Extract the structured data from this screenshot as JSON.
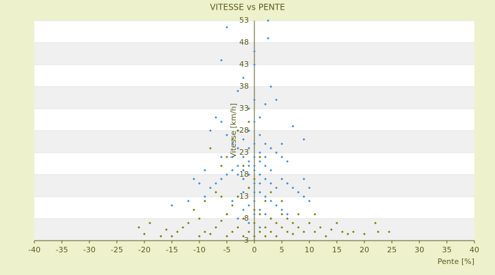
{
  "chart_data": {
    "type": "scatter",
    "title": "VITESSE vs PENTE",
    "x_label": "Pente [%]",
    "y_label": "Vitesse [km/h]",
    "xlim": [
      -40,
      40
    ],
    "xticks": [
      -40,
      -35,
      -30,
      -25,
      -20,
      -15,
      -10,
      -5,
      0,
      5,
      10,
      15,
      20,
      25,
      30,
      35,
      40
    ],
    "ylim": [
      3,
      53
    ],
    "yticks": [
      3,
      8,
      13,
      18,
      23,
      28,
      33,
      38,
      43,
      48,
      53
    ],
    "grid": true,
    "series": [
      {
        "color": "#3a8fd9",
        "x": [
          -5,
          2.5,
          2.5,
          -6,
          0,
          -2,
          3,
          -3,
          0,
          -1,
          2,
          -7,
          -6,
          7,
          9,
          -8,
          -5,
          -4,
          -3,
          -2,
          -1,
          0,
          1,
          2,
          3,
          4,
          5,
          6,
          -2,
          -1,
          0,
          1,
          2,
          -3,
          -4,
          -5,
          -6,
          -7,
          -8,
          -10,
          -11,
          -9,
          -15,
          -12,
          -3,
          -2,
          -1,
          0,
          1,
          2,
          3,
          4,
          5,
          6,
          7,
          8,
          9,
          10,
          -1,
          0,
          1,
          2,
          3,
          4,
          -2,
          -3,
          -4,
          0,
          1,
          -1,
          0,
          2,
          5,
          6,
          -2,
          -5,
          -1,
          0,
          1,
          -2,
          0,
          -1,
          1,
          0,
          3,
          -4,
          2,
          -3,
          1,
          4,
          0,
          -1,
          1,
          3,
          -3,
          9,
          10,
          -9,
          5,
          -6
        ],
        "values": [
          51.5,
          53,
          49,
          44,
          43,
          40,
          38,
          37,
          35,
          33,
          34,
          31,
          30,
          29,
          26,
          28,
          27,
          25,
          24,
          26,
          28,
          30,
          27,
          25,
          24,
          23,
          22,
          21,
          22,
          21,
          22,
          21,
          20,
          20,
          19,
          18,
          17,
          16,
          15,
          16,
          17,
          13,
          11,
          12,
          18,
          17,
          18,
          19,
          18,
          17,
          16,
          15,
          17,
          16,
          15,
          14,
          13,
          12,
          15,
          16,
          14,
          13,
          12,
          11,
          14,
          13,
          12,
          12,
          10,
          11,
          9,
          9,
          10,
          9,
          10,
          9,
          24,
          25,
          23,
          19,
          20,
          20,
          16,
          14,
          19,
          22,
          22,
          28,
          31,
          35,
          46,
          7,
          6,
          8,
          8,
          17,
          15,
          19,
          25,
          22
        ]
      },
      {
        "color": "#7f7f00",
        "x": [
          -21,
          -19,
          -16,
          -14,
          -13,
          -12,
          -10,
          -9,
          -8,
          -7,
          -6,
          -5,
          -5,
          -4,
          -4,
          -3,
          -3,
          -2,
          -2,
          -1,
          -1,
          0,
          0,
          0,
          1,
          1,
          2,
          2,
          2,
          3,
          3,
          4,
          4,
          5,
          5,
          6,
          6,
          7,
          7,
          8,
          9,
          10,
          11,
          12,
          13,
          14,
          15,
          16,
          17,
          18,
          20,
          22,
          22.5,
          24.5,
          -20,
          -17,
          -11,
          -7,
          -6,
          -4,
          -3,
          -8,
          -5,
          -9,
          3,
          5,
          8,
          -2,
          1,
          -1,
          0,
          -6,
          -10,
          -15,
          11
        ],
        "values": [
          6,
          7,
          5.5,
          5,
          6,
          7,
          8,
          5,
          4.5,
          6,
          7.5,
          9,
          4,
          5,
          11,
          6,
          13,
          4,
          8,
          5,
          15,
          4,
          7,
          10,
          5,
          9,
          4,
          6,
          12,
          5,
          8,
          4,
          7,
          6,
          9,
          5,
          8,
          4.5,
          7,
          6,
          5,
          7,
          5,
          6,
          4,
          5.5,
          7,
          5,
          4.5,
          5,
          4.5,
          7,
          5,
          5,
          4.5,
          4,
          10,
          14,
          20,
          26,
          28,
          24,
          22,
          12,
          14,
          12,
          9,
          20,
          22,
          30,
          17,
          13,
          4,
          4,
          9
        ]
      }
    ]
  }
}
